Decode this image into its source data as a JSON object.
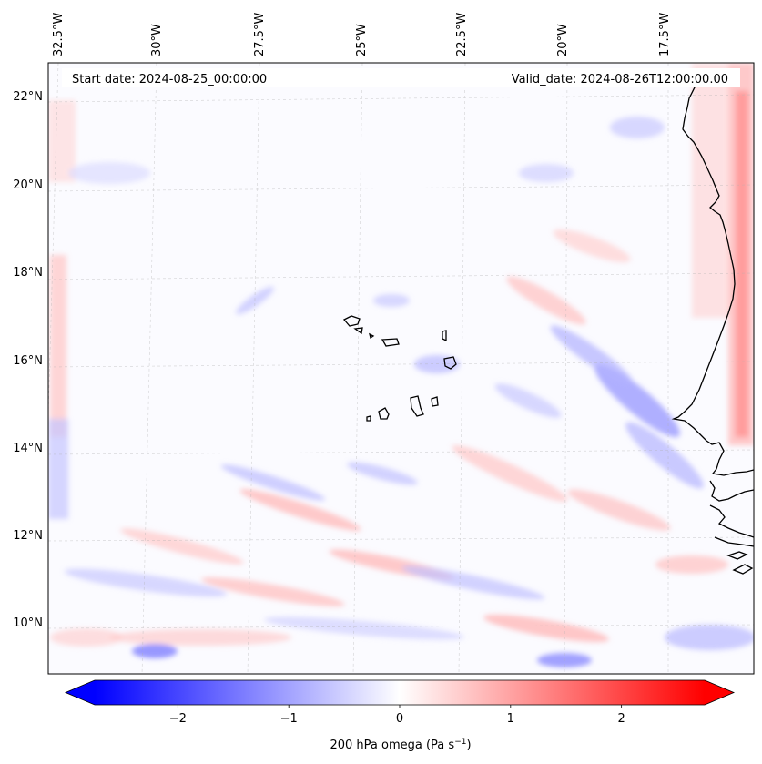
{
  "map": {
    "start_label": "Start date: 2024-08-25_00:00:00",
    "valid_label": "Valid_date: 2024-08-26T12:00:00.00",
    "lon_labels": [
      "32.5°W",
      "30°W",
      "27.5°W",
      "25°W",
      "22.5°W",
      "20°W",
      "17.5°W"
    ],
    "lat_labels": [
      "22°N",
      "20°N",
      "18°N",
      "16°N",
      "14°N",
      "12°N",
      "10°N"
    ],
    "variable": "200 hPa omega",
    "units": "Pa s",
    "units_exponent": "−1",
    "colormap": "bwr",
    "colors": {
      "negative": "#0000ff",
      "neutral": "#ffffff",
      "positive": "#ff0000",
      "coast": "#000000"
    }
  },
  "colorbar": {
    "ticks": [
      "−2",
      "−1",
      "0",
      "1",
      "2"
    ],
    "tick_values": [
      -2,
      -1,
      0,
      1,
      2
    ],
    "range": [
      -2.75,
      2.75
    ]
  }
}
